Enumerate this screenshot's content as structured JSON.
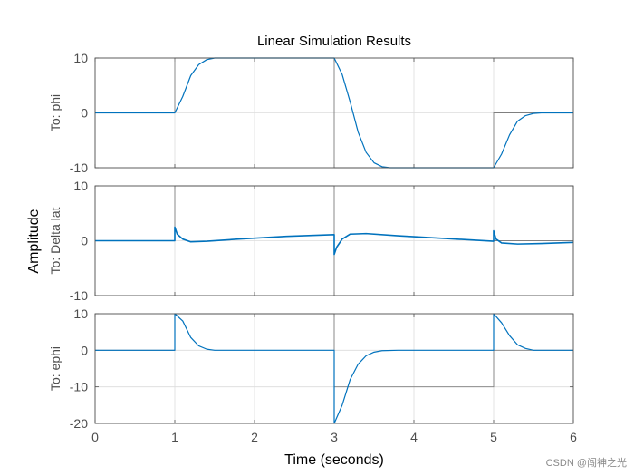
{
  "chart_data": {
    "type": "line",
    "title": "Linear Simulation Results",
    "xlabel": "Time (seconds)",
    "ylabel": "Amplitude",
    "xlim": [
      0,
      6
    ],
    "xticks": [
      "0",
      "1",
      "2",
      "3",
      "4",
      "5",
      "6"
    ],
    "grid": true,
    "colors": {
      "signal": "#0072bd",
      "input": "#7f7f7f",
      "axis": "#4d4d4d",
      "grid": "#dcdcdc"
    },
    "subplots": [
      {
        "name": "phi",
        "label": "To: phi",
        "ylim": [
          -10,
          10
        ],
        "yticks": [
          "10",
          "0",
          "-10"
        ],
        "input": {
          "t": [
            0,
            1,
            1,
            3,
            3,
            5,
            5,
            6
          ],
          "v": [
            0,
            0,
            10,
            10,
            -10,
            -10,
            0,
            0
          ]
        },
        "output": {
          "t": [
            0,
            1.0,
            1.1,
            1.2,
            1.3,
            1.4,
            1.5,
            1.6,
            1.8,
            3.0,
            3.1,
            3.2,
            3.3,
            3.4,
            3.5,
            3.6,
            3.7,
            3.9,
            5.0,
            5.1,
            5.2,
            5.3,
            5.4,
            5.5,
            5.6,
            6.0
          ],
          "v": [
            0,
            0,
            3,
            6.8,
            8.8,
            9.7,
            10,
            10,
            10,
            10,
            7,
            2,
            -3.5,
            -7.2,
            -9.1,
            -9.8,
            -10,
            -10,
            -10,
            -7.5,
            -4,
            -1.5,
            -0.5,
            -0.1,
            0,
            0
          ]
        }
      },
      {
        "name": "delta-lat",
        "label": "To: Delta lat",
        "ylim": [
          -10,
          10
        ],
        "yticks": [
          "10",
          "0",
          "-10"
        ],
        "input": {
          "t": [
            0,
            1,
            1,
            3,
            3,
            5,
            5,
            6
          ],
          "v": [
            0,
            0,
            10,
            10,
            -10,
            -10,
            0,
            0
          ]
        },
        "output": {
          "t": [
            0,
            1.0,
            1.0,
            1.03,
            1.1,
            1.2,
            1.4,
            1.8,
            2.4,
            3.0,
            3.0,
            3.03,
            3.1,
            3.2,
            3.4,
            3.8,
            4.4,
            5.0,
            5.0,
            5.03,
            5.1,
            5.3,
            5.6,
            6.0
          ],
          "v": [
            0,
            0,
            2.5,
            1.2,
            0.3,
            -0.2,
            -0.1,
            0.3,
            0.8,
            1.1,
            -2.5,
            -1.2,
            0.3,
            1.2,
            1.3,
            0.9,
            0.4,
            -0.1,
            1.8,
            0.3,
            -0.4,
            -0.6,
            -0.5,
            -0.3
          ]
        }
      },
      {
        "name": "ephi",
        "label": "To: ephi",
        "ylim": [
          -20,
          10
        ],
        "yticks": [
          "10",
          "0",
          "-10",
          "-20"
        ],
        "input": {
          "t": [
            0,
            1,
            1,
            3,
            3,
            5,
            5,
            6
          ],
          "v": [
            0,
            0,
            10,
            10,
            -10,
            -10,
            0,
            0
          ]
        },
        "output": {
          "t": [
            0,
            1.0,
            1.0,
            1.1,
            1.2,
            1.3,
            1.4,
            1.5,
            1.6,
            3.0,
            3.0,
            3.1,
            3.2,
            3.3,
            3.4,
            3.5,
            3.6,
            3.8,
            5.0,
            5.0,
            5.1,
            5.2,
            5.3,
            5.4,
            5.5,
            6.0
          ],
          "v": [
            0,
            0,
            10,
            8,
            3.5,
            1.2,
            0.3,
            0,
            0,
            0,
            -20,
            -15,
            -8,
            -3.8,
            -1.5,
            -0.5,
            -0.1,
            0,
            0,
            10,
            7.5,
            4,
            1.5,
            0.5,
            0,
            0
          ]
        }
      }
    ]
  },
  "watermark": "CSDN @闯神之光"
}
